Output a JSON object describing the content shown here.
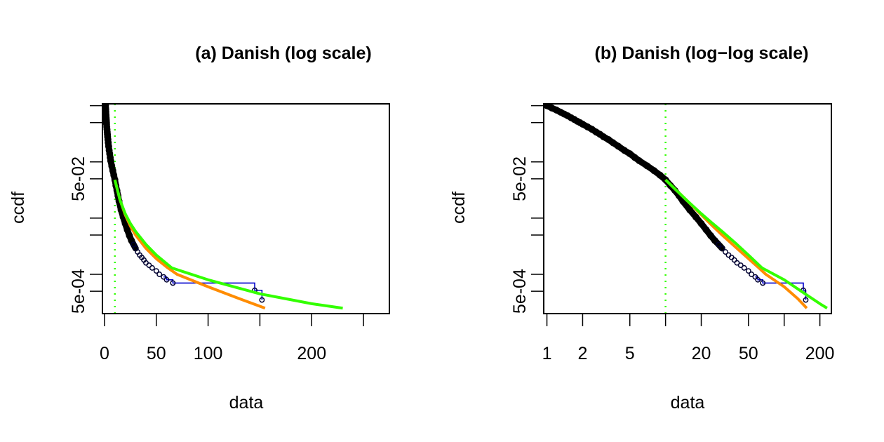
{
  "chart_data": [
    {
      "type": "scatter",
      "title": "(a) Danish (log scale)",
      "xlabel": "data",
      "ylabel": "ccdf",
      "x_scale": "linear",
      "y_scale": "log",
      "xlim": [
        -2,
        275
      ],
      "ylim": [
        0.0002,
        1.08
      ],
      "x_ticks": [
        0,
        50,
        100,
        200
      ],
      "x_ticks_minor": [
        150,
        250
      ],
      "y_ticks": [
        0.0005,
        0.05
      ],
      "y_tick_labels": [
        "5e-04",
        "5e-02"
      ],
      "y_ticks_minor": [
        0.001,
        0.005,
        0.01,
        0.1,
        0.5,
        1
      ],
      "threshold": 10,
      "series": [
        {
          "kind": "empirical",
          "color": "#000000",
          "x": [
            1.0,
            1.1,
            1.2,
            1.3,
            1.4,
            1.5,
            1.6,
            1.7,
            1.8,
            1.9,
            2.0,
            2.2,
            2.4,
            2.6,
            2.8,
            3.0,
            3.3,
            3.6,
            4.0,
            4.5,
            5.0,
            5.5,
            6.0,
            7.0,
            8.0,
            9.0,
            10.0,
            11.0,
            12.0,
            13.0,
            14.0,
            16.0,
            18.0,
            20.0,
            22.0,
            24.0,
            26.0,
            28.0,
            30.0,
            32.0,
            34.0,
            36.0,
            38.0,
            40.0,
            43.0,
            46.0,
            50.0,
            53.0,
            57.0,
            60.0,
            66.0,
            145.0,
            152.0
          ],
          "y": [
            1.0,
            0.91,
            0.84,
            0.77,
            0.71,
            0.66,
            0.61,
            0.57,
            0.53,
            0.5,
            0.47,
            0.42,
            0.38,
            0.34,
            0.31,
            0.28,
            0.25,
            0.22,
            0.19,
            0.16,
            0.14,
            0.12,
            0.105,
            0.085,
            0.07,
            0.058,
            0.048,
            0.038,
            0.031,
            0.025,
            0.02,
            0.014,
            0.0105,
            0.008,
            0.0062,
            0.0049,
            0.004,
            0.0034,
            0.0029,
            0.0025,
            0.0022,
            0.002,
            0.0018,
            0.0016,
            0.00145,
            0.0013,
            0.00115,
            0.001,
            0.0009,
            0.0008,
            0.0007,
            0.00052,
            0.00035
          ]
        },
        {
          "name": "",
          "kind": "fit",
          "color": "#ff8c00",
          "x": [
            10,
            15,
            20,
            25,
            30,
            40,
            50,
            60,
            70,
            100,
            130,
            155
          ],
          "y": [
            0.048,
            0.021,
            0.0115,
            0.0072,
            0.005,
            0.0029,
            0.0019,
            0.00135,
            0.001,
            0.0006,
            0.00037,
            0.00025
          ]
        },
        {
          "name": "",
          "kind": "fit",
          "color": "#33ff00",
          "x": [
            10,
            15,
            20,
            25,
            30,
            40,
            50,
            65,
            100,
            150,
            200,
            230
          ],
          "y": [
            0.048,
            0.021,
            0.012,
            0.008,
            0.0058,
            0.0034,
            0.0022,
            0.0013,
            0.0008,
            0.00045,
            0.0003,
            0.00025
          ]
        }
      ]
    },
    {
      "type": "scatter",
      "title": "(b) Danish (log−log scale)",
      "xlabel": "data",
      "ylabel": "ccdf",
      "x_scale": "log",
      "y_scale": "log",
      "xlim": [
        0.94,
        250
      ],
      "ylim": [
        0.0002,
        1.08
      ],
      "x_ticks": [
        1,
        2,
        5,
        20,
        50,
        200
      ],
      "x_ticks_minor": [
        10,
        100
      ],
      "y_ticks": [
        0.0005,
        0.05
      ],
      "y_tick_labels": [
        "5e-04",
        "5e-02"
      ],
      "y_ticks_minor": [
        0.001,
        0.005,
        0.01,
        0.1,
        0.5,
        1
      ],
      "threshold": 10,
      "series": [
        {
          "kind": "empirical",
          "color": "#000000",
          "x": [
            1.0,
            1.1,
            1.2,
            1.3,
            1.4,
            1.5,
            1.6,
            1.7,
            1.8,
            1.9,
            2.0,
            2.2,
            2.4,
            2.6,
            2.8,
            3.0,
            3.3,
            3.6,
            4.0,
            4.5,
            5.0,
            5.5,
            6.0,
            7.0,
            8.0,
            9.0,
            10.0,
            11.0,
            12.0,
            13.0,
            14.0,
            16.0,
            18.0,
            20.0,
            22.0,
            24.0,
            26.0,
            28.0,
            30.0,
            32.0,
            34.0,
            36.0,
            38.0,
            40.0,
            43.0,
            46.0,
            50.0,
            53.0,
            57.0,
            60.0,
            66.0,
            145.0,
            152.0
          ],
          "y": [
            1.0,
            0.91,
            0.84,
            0.77,
            0.71,
            0.66,
            0.61,
            0.57,
            0.53,
            0.5,
            0.47,
            0.42,
            0.38,
            0.34,
            0.31,
            0.28,
            0.25,
            0.22,
            0.19,
            0.16,
            0.14,
            0.12,
            0.105,
            0.085,
            0.07,
            0.058,
            0.048,
            0.038,
            0.031,
            0.025,
            0.02,
            0.014,
            0.0105,
            0.008,
            0.0062,
            0.0049,
            0.004,
            0.0034,
            0.0029,
            0.0025,
            0.0022,
            0.002,
            0.0018,
            0.0016,
            0.00145,
            0.0013,
            0.00115,
            0.001,
            0.0009,
            0.0008,
            0.0007,
            0.00052,
            0.00035
          ]
        },
        {
          "name": "",
          "kind": "fit",
          "color": "#ff8c00",
          "x": [
            10,
            15,
            20,
            25,
            30,
            40,
            50,
            60,
            70,
            100,
            130,
            155
          ],
          "y": [
            0.048,
            0.021,
            0.0115,
            0.0072,
            0.005,
            0.0029,
            0.0019,
            0.00135,
            0.001,
            0.0006,
            0.00037,
            0.00025
          ]
        },
        {
          "name": "",
          "kind": "fit",
          "color": "#33ff00",
          "x": [
            10,
            15,
            20,
            25,
            30,
            40,
            50,
            65,
            100,
            150,
            200,
            230
          ],
          "y": [
            0.048,
            0.021,
            0.012,
            0.008,
            0.0058,
            0.0034,
            0.0022,
            0.0013,
            0.0008,
            0.00045,
            0.0003,
            0.00025
          ]
        }
      ]
    }
  ]
}
